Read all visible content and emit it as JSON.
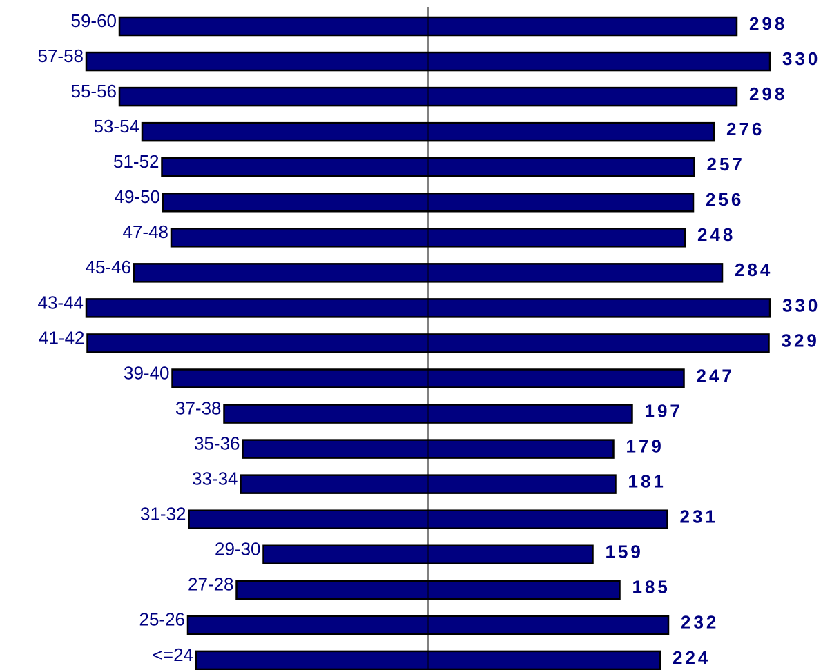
{
  "chart_data": {
    "type": "bar",
    "categories": [
      "59-60",
      "57-58",
      "55-56",
      "53-54",
      "51-52",
      "49-50",
      "47-48",
      "45-46",
      "43-44",
      "41-42",
      "39-40",
      "37-38",
      "35-36",
      "33-34",
      "31-32",
      "29-30",
      "27-28",
      "25-26",
      "<=24"
    ],
    "values": [
      298,
      330,
      298,
      276,
      257,
      256,
      248,
      284,
      330,
      329,
      247,
      197,
      179,
      181,
      231,
      159,
      185,
      232,
      224
    ],
    "color": "#000080"
  }
}
